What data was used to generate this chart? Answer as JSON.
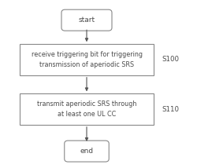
{
  "background_color": "#ffffff",
  "start_label": "start",
  "end_label": "end",
  "box1_text": "receive triggering bit for triggering\ntransmission of aperiodic SRS",
  "box2_text": "transmit aperiodic SRS through\nat least one UL CC",
  "step1_label": "S100",
  "step2_label": "S110",
  "text_color": "#4a4a4a",
  "box_edge_color": "#888888",
  "arrow_color": "#555555",
  "font_size": 5.8,
  "label_font_size": 6.2,
  "terminal_font_size": 6.5,
  "fig_w": 2.5,
  "fig_h": 2.14,
  "dpi": 100
}
